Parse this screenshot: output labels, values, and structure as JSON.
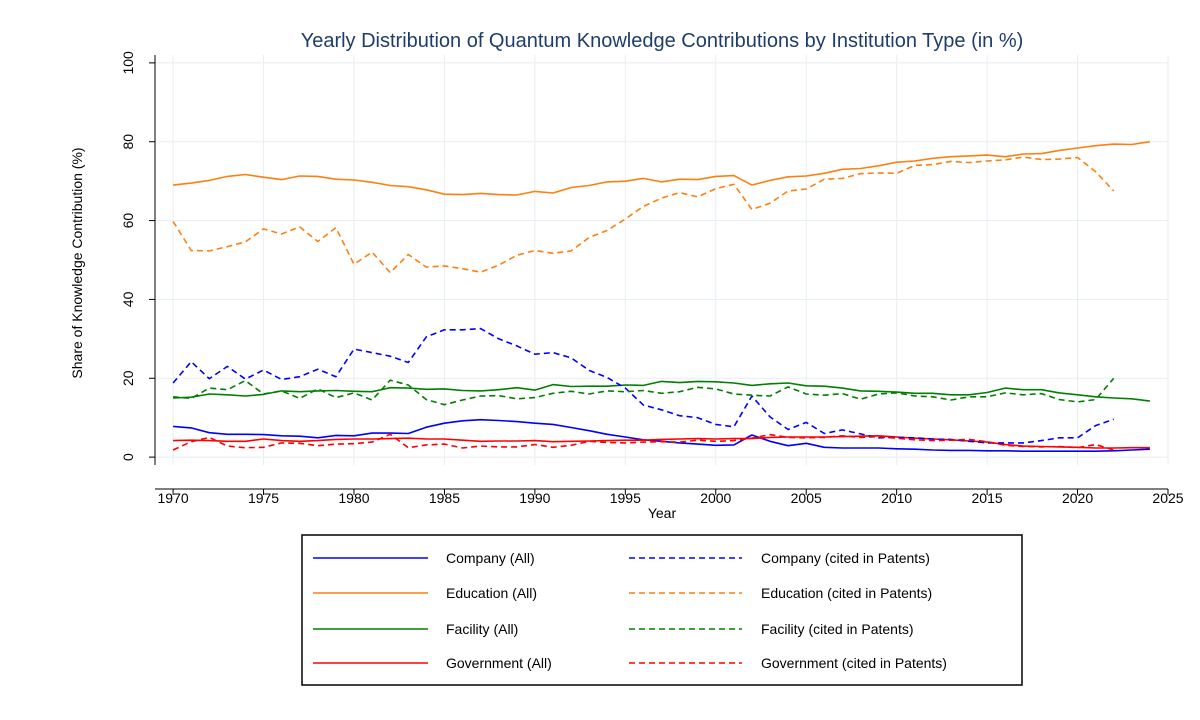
{
  "chart_data": {
    "type": "line",
    "title": "Yearly Distribution of Quantum Knowledge Contributions by Institution Type (in %)",
    "xlabel": "Year",
    "ylabel": "Share of Knowledge Contribution (%)",
    "xlim": [
      1969,
      2025
    ],
    "ylim": [
      -2,
      102
    ],
    "xticks": [
      1970,
      1975,
      1980,
      1985,
      1990,
      1995,
      2000,
      2005,
      2010,
      2015,
      2020,
      2025
    ],
    "yticks": [
      0,
      20,
      40,
      60,
      80,
      100
    ],
    "grid": true,
    "legend_position": "bottom",
    "colors": {
      "company": "#0000ff",
      "education": "#ff7f0e",
      "facility": "#008000",
      "government": "#ff0000"
    },
    "series": [
      {
        "name": "Company (All)",
        "color": "#0000ff",
        "style": "solid",
        "x": [
          1970,
          1971,
          1972,
          1973,
          1974,
          1975,
          1976,
          1977,
          1978,
          1979,
          1980,
          1981,
          1982,
          1983,
          1984,
          1985,
          1986,
          1987,
          1988,
          1989,
          1990,
          1991,
          1992,
          1993,
          1994,
          1995,
          1996,
          1997,
          1998,
          1999,
          2000,
          2001,
          2002,
          2003,
          2004,
          2005,
          2006,
          2007,
          2008,
          2009,
          2010,
          2011,
          2012,
          2013,
          2014,
          2015,
          2016,
          2017,
          2018,
          2019,
          2020,
          2021,
          2022,
          2023,
          2024
        ],
        "y": [
          7.8,
          7.4,
          6.2,
          5.8,
          5.8,
          5.7,
          5.4,
          5.3,
          4.9,
          5.5,
          5.4,
          6.1,
          6.1,
          6.0,
          7.6,
          8.6,
          9.2,
          9.5,
          9.3,
          9.0,
          8.6,
          8.3,
          7.5,
          6.7,
          5.8,
          5.1,
          4.4,
          4.0,
          3.6,
          3.3,
          3.0,
          3.1,
          5.6,
          4.0,
          2.9,
          3.5,
          2.5,
          2.3,
          2.3,
          2.3,
          2.1,
          2.0,
          1.8,
          1.7,
          1.7,
          1.6,
          1.6,
          1.5,
          1.5,
          1.5,
          1.5,
          1.5,
          1.6,
          1.8,
          2.0
        ]
      },
      {
        "name": "Education (All)",
        "color": "#ff7f0e",
        "style": "solid",
        "x": [
          1970,
          1971,
          1972,
          1973,
          1974,
          1975,
          1976,
          1977,
          1978,
          1979,
          1980,
          1981,
          1982,
          1983,
          1984,
          1985,
          1986,
          1987,
          1988,
          1989,
          1990,
          1991,
          1992,
          1993,
          1994,
          1995,
          1996,
          1997,
          1998,
          1999,
          2000,
          2001,
          2002,
          2003,
          2004,
          2005,
          2006,
          2007,
          2008,
          2009,
          2010,
          2011,
          2012,
          2013,
          2014,
          2015,
          2016,
          2017,
          2018,
          2019,
          2020,
          2021,
          2022,
          2023,
          2024
        ],
        "y": [
          69.0,
          69.5,
          70.2,
          71.2,
          71.7,
          71.0,
          70.4,
          71.3,
          71.2,
          70.5,
          70.3,
          69.7,
          68.9,
          68.6,
          67.8,
          66.7,
          66.6,
          66.9,
          66.6,
          66.5,
          67.4,
          67.0,
          68.4,
          68.9,
          69.8,
          70.0,
          70.7,
          69.8,
          70.5,
          70.4,
          71.2,
          71.4,
          69.0,
          70.2,
          71.1,
          71.3,
          72.0,
          73.0,
          73.2,
          73.9,
          74.8,
          75.1,
          75.8,
          76.2,
          76.4,
          76.6,
          76.2,
          76.9,
          77.0,
          77.8,
          78.4,
          79.0,
          79.4,
          79.3,
          80.0
        ]
      },
      {
        "name": "Facility (All)",
        "color": "#008000",
        "style": "solid",
        "x": [
          1970,
          1971,
          1972,
          1973,
          1974,
          1975,
          1976,
          1977,
          1978,
          1979,
          1980,
          1981,
          1982,
          1983,
          1984,
          1985,
          1986,
          1987,
          1988,
          1989,
          1990,
          1991,
          1992,
          1993,
          1994,
          1995,
          1996,
          1997,
          1998,
          1999,
          2000,
          2001,
          2002,
          2003,
          2004,
          2005,
          2006,
          2007,
          2008,
          2009,
          2010,
          2011,
          2012,
          2013,
          2014,
          2015,
          2016,
          2017,
          2018,
          2019,
          2020,
          2021,
          2022,
          2023,
          2024
        ],
        "y": [
          15.0,
          15.2,
          16.0,
          15.8,
          15.5,
          15.9,
          16.8,
          16.6,
          16.8,
          16.9,
          16.7,
          16.6,
          17.6,
          17.5,
          17.2,
          17.3,
          16.9,
          16.8,
          17.1,
          17.6,
          17.0,
          18.4,
          17.9,
          18.0,
          18.0,
          18.3,
          18.2,
          19.2,
          18.9,
          19.2,
          19.1,
          18.8,
          18.2,
          18.6,
          18.8,
          18.1,
          18.0,
          17.5,
          16.8,
          16.7,
          16.5,
          16.2,
          16.2,
          15.8,
          15.8,
          16.4,
          17.5,
          17.1,
          17.1,
          16.3,
          15.8,
          15.3,
          15.0,
          14.8,
          14.2
        ]
      },
      {
        "name": "Government (All)",
        "color": "#ff0000",
        "style": "solid",
        "x": [
          1970,
          1971,
          1972,
          1973,
          1974,
          1975,
          1976,
          1977,
          1978,
          1979,
          1980,
          1981,
          1982,
          1983,
          1984,
          1985,
          1986,
          1987,
          1988,
          1989,
          1990,
          1991,
          1992,
          1993,
          1994,
          1995,
          1996,
          1997,
          1998,
          1999,
          2000,
          2001,
          2002,
          2003,
          2004,
          2005,
          2006,
          2007,
          2008,
          2009,
          2010,
          2011,
          2012,
          2013,
          2014,
          2015,
          2016,
          2017,
          2018,
          2019,
          2020,
          2021,
          2022,
          2023,
          2024
        ],
        "y": [
          4.2,
          4.3,
          4.2,
          4.0,
          4.0,
          4.6,
          4.2,
          4.0,
          4.2,
          4.5,
          4.6,
          4.6,
          4.7,
          4.8,
          4.6,
          4.6,
          4.3,
          4.0,
          4.1,
          4.1,
          4.2,
          3.9,
          4.0,
          4.1,
          4.2,
          4.3,
          4.3,
          4.5,
          4.6,
          4.7,
          4.6,
          4.7,
          4.7,
          5.0,
          5.1,
          5.1,
          5.1,
          5.2,
          5.3,
          5.4,
          5.1,
          4.8,
          4.6,
          4.4,
          4.1,
          3.8,
          3.2,
          2.8,
          2.7,
          2.6,
          2.5,
          2.3,
          2.3,
          2.4,
          2.4
        ]
      },
      {
        "name": "Company (cited in Patents)",
        "color": "#0000ff",
        "style": "dashed",
        "x": [
          1970,
          1971,
          1972,
          1973,
          1974,
          1975,
          1976,
          1977,
          1978,
          1979,
          1980,
          1981,
          1982,
          1983,
          1984,
          1985,
          1986,
          1987,
          1988,
          1989,
          1990,
          1991,
          1992,
          1993,
          1994,
          1995,
          1996,
          1997,
          1998,
          1999,
          2000,
          2001,
          2002,
          2003,
          2004,
          2005,
          2006,
          2007,
          2008,
          2009,
          2010,
          2011,
          2012,
          2013,
          2014,
          2015,
          2016,
          2017,
          2018,
          2019,
          2020,
          2021,
          2022
        ],
        "y": [
          18.8,
          24.2,
          19.9,
          23.0,
          19.8,
          22.1,
          19.7,
          20.4,
          22.3,
          20.4,
          27.4,
          26.5,
          25.6,
          24.0,
          30.5,
          32.3,
          32.3,
          32.6,
          30.0,
          28.2,
          26.1,
          26.5,
          25.2,
          22.0,
          20.2,
          17.5,
          13.2,
          12.0,
          10.5,
          10.0,
          8.3,
          7.7,
          15.5,
          10.2,
          7.0,
          8.8,
          6.0,
          6.9,
          5.9,
          4.9,
          5.0,
          4.9,
          4.6,
          4.5,
          4.0,
          3.6,
          3.6,
          3.6,
          4.2,
          4.9,
          4.9,
          8.0,
          9.6
        ]
      },
      {
        "name": "Education (cited in Patents)",
        "color": "#ff7f0e",
        "style": "dashed",
        "x": [
          1970,
          1971,
          1972,
          1973,
          1974,
          1975,
          1976,
          1977,
          1978,
          1979,
          1980,
          1981,
          1982,
          1983,
          1984,
          1985,
          1986,
          1987,
          1988,
          1989,
          1990,
          1991,
          1992,
          1993,
          1994,
          1995,
          1996,
          1997,
          1998,
          1999,
          2000,
          2001,
          2002,
          2003,
          2004,
          2005,
          2006,
          2007,
          2008,
          2009,
          2010,
          2011,
          2012,
          2013,
          2014,
          2015,
          2016,
          2017,
          2018,
          2019,
          2020,
          2021,
          2022
        ],
        "y": [
          59.8,
          52.4,
          52.3,
          53.4,
          54.6,
          57.9,
          56.6,
          58.4,
          54.7,
          58.2,
          48.9,
          52.0,
          46.8,
          51.4,
          48.2,
          48.5,
          47.8,
          46.9,
          48.7,
          51.2,
          52.4,
          51.7,
          52.3,
          55.7,
          57.5,
          60.4,
          63.6,
          65.7,
          67.1,
          66.0,
          68.1,
          69.2,
          62.8,
          64.4,
          67.5,
          68.0,
          70.5,
          70.7,
          71.9,
          72.1,
          72.0,
          74.0,
          74.2,
          75.0,
          74.7,
          75.1,
          75.4,
          76.1,
          75.5,
          75.6,
          76.0,
          72.4,
          67.5
        ]
      },
      {
        "name": "Facility (cited in Patents)",
        "color": "#008000",
        "style": "dashed",
        "x": [
          1970,
          1971,
          1972,
          1973,
          1974,
          1975,
          1976,
          1977,
          1978,
          1979,
          1980,
          1981,
          1982,
          1983,
          1984,
          1985,
          1986,
          1987,
          1988,
          1989,
          1990,
          1991,
          1992,
          1993,
          1994,
          1995,
          1996,
          1997,
          1998,
          1999,
          2000,
          2001,
          2002,
          2003,
          2004,
          2005,
          2006,
          2007,
          2008,
          2009,
          2010,
          2011,
          2012,
          2013,
          2014,
          2015,
          2016,
          2017,
          2018,
          2019,
          2020,
          2021,
          2022
        ],
        "y": [
          15.3,
          14.9,
          17.5,
          17.1,
          19.4,
          16.0,
          16.8,
          14.9,
          17.3,
          15.1,
          16.3,
          14.5,
          19.5,
          18.3,
          14.6,
          13.3,
          14.5,
          15.5,
          15.6,
          14.8,
          15.1,
          16.2,
          16.7,
          16.0,
          16.8,
          16.6,
          16.9,
          16.2,
          16.6,
          17.7,
          17.3,
          16.0,
          15.7,
          15.5,
          17.8,
          16.0,
          15.7,
          16.1,
          14.7,
          16.0,
          16.3,
          15.5,
          15.3,
          14.5,
          15.3,
          15.3,
          16.3,
          15.8,
          16.1,
          14.6,
          14.0,
          14.6,
          20.0
        ]
      },
      {
        "name": "Government (cited in Patents)",
        "color": "#ff0000",
        "style": "dashed",
        "x": [
          1970,
          1971,
          1972,
          1973,
          1974,
          1975,
          1976,
          1977,
          1978,
          1979,
          1980,
          1981,
          1982,
          1983,
          1984,
          1985,
          1986,
          1987,
          1988,
          1989,
          1990,
          1991,
          1992,
          1993,
          1994,
          1995,
          1996,
          1997,
          1998,
          1999,
          2000,
          2001,
          2002,
          2003,
          2004,
          2005,
          2006,
          2007,
          2008,
          2009,
          2010,
          2011,
          2012,
          2013,
          2014,
          2015,
          2016,
          2017,
          2018,
          2019,
          2020,
          2021,
          2022
        ],
        "y": [
          1.8,
          3.9,
          5.0,
          2.8,
          2.4,
          2.5,
          3.6,
          3.5,
          2.9,
          3.3,
          3.4,
          3.8,
          5.8,
          2.4,
          3.1,
          3.3,
          2.3,
          2.8,
          2.6,
          2.6,
          3.2,
          2.5,
          3.0,
          4.0,
          3.7,
          3.6,
          3.8,
          3.9,
          3.8,
          4.3,
          4.0,
          4.2,
          4.8,
          5.7,
          5.0,
          4.9,
          5.0,
          5.4,
          5.0,
          5.2,
          4.8,
          4.4,
          4.2,
          4.3,
          4.5,
          3.9,
          3.0,
          2.7,
          2.6,
          2.7,
          2.4,
          3.2,
          1.8
        ]
      }
    ],
    "legend": {
      "left_column": [
        "Company (All)",
        "Education (All)",
        "Facility (All)",
        "Government (All)"
      ],
      "right_column": [
        "Company (cited in Patents)",
        "Education (cited in Patents)",
        "Facility (cited in Patents)",
        "Government (cited in Patents)"
      ]
    }
  }
}
